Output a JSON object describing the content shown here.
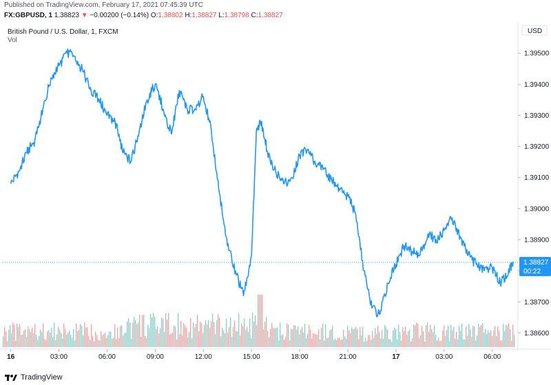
{
  "header": {
    "published": "Published on TradingView.com, February 17, 2021 07:45:39 UTC",
    "symbol": "FX:GBPUSD, 1",
    "last": "1.38823",
    "change_arrow": "▼",
    "change": "−0.00200 (−0.14%)",
    "o_label": "O:",
    "o_value": "1.38802",
    "h_label": "H:",
    "h_value": "1.38827",
    "l_label": "L:",
    "l_value": "1.38798",
    "c_label": "C:",
    "c_value": "1.38827"
  },
  "chart_title": "British Pound / U.S. Dollar, 1, FXCM",
  "volume_label": "Vol",
  "footer": {
    "brand": "TradingView",
    "logo_icon": "tradingview-logo-icon"
  },
  "colors": {
    "line": "#2196f3",
    "up_vol": "#26a69a",
    "down_vol": "#ef5350",
    "price_tag": "#2196f3"
  },
  "chart_data": {
    "type": "line",
    "currency_label": "USD",
    "price_tag": {
      "value": "1.38827",
      "countdown": "00:22"
    },
    "y_ticks": [
      "1.39500",
      "1.39400",
      "1.39300",
      "1.39200",
      "1.39100",
      "1.39000",
      "1.38900",
      "1.38800",
      "1.38700",
      "1.38600"
    ],
    "ylim": [
      1.3855,
      1.396
    ],
    "x_ticks": [
      "16",
      "03:00",
      "06:00",
      "09:00",
      "12:00",
      "15:00",
      "18:00",
      "21:00",
      "17",
      "03:00",
      "06:00"
    ],
    "x_tick_bold": [
      true,
      false,
      false,
      false,
      false,
      false,
      false,
      false,
      true,
      false,
      false
    ],
    "xlim": [
      -0.5,
      31.6
    ],
    "series": [
      {
        "x": [
          0,
          0.5,
          1,
          1.5,
          2,
          2.5,
          3,
          3.5,
          4,
          4.5,
          5,
          5.5,
          6,
          6.5,
          7,
          7.5,
          8,
          8.5,
          9,
          9.5,
          10,
          10.5,
          11,
          11.5,
          12,
          12.5,
          13,
          13.5,
          14,
          14.5,
          15,
          15.3,
          15.6,
          16,
          16.5,
          17,
          17.5,
          18,
          18.5,
          19,
          19.5,
          20,
          20.5,
          21,
          21.5,
          22,
          22.5,
          23,
          23.5,
          24,
          24.5,
          25,
          25.5,
          26,
          26.5,
          27,
          27.5,
          28,
          28.5,
          29,
          29.5,
          30,
          30.5,
          31,
          31.3
        ],
        "values": [
          1.3908,
          1.3912,
          1.3918,
          1.3922,
          1.3932,
          1.3942,
          1.3946,
          1.395,
          1.3949,
          1.3944,
          1.3938,
          1.3935,
          1.393,
          1.3928,
          1.3918,
          1.3915,
          1.3925,
          1.3935,
          1.394,
          1.3932,
          1.3924,
          1.3938,
          1.3932,
          1.3932,
          1.3936,
          1.3925,
          1.3905,
          1.3888,
          1.388,
          1.3872,
          1.3885,
          1.3925,
          1.3928,
          1.3918,
          1.3912,
          1.3908,
          1.391,
          1.3917,
          1.3919,
          1.3914,
          1.3913,
          1.3909,
          1.3906,
          1.3904,
          1.3898,
          1.388,
          1.3868,
          1.3866,
          1.3876,
          1.3882,
          1.3888,
          1.3886,
          1.3885,
          1.3892,
          1.389,
          1.3893,
          1.3897,
          1.3891,
          1.3885,
          1.3882,
          1.388,
          1.3881,
          1.3876,
          1.3879,
          1.3883
        ]
      }
    ],
    "volume": {
      "max_fraction": 0.7,
      "spike_at_x": 15.5,
      "current_price": 1.38827
    },
    "grid": false
  }
}
